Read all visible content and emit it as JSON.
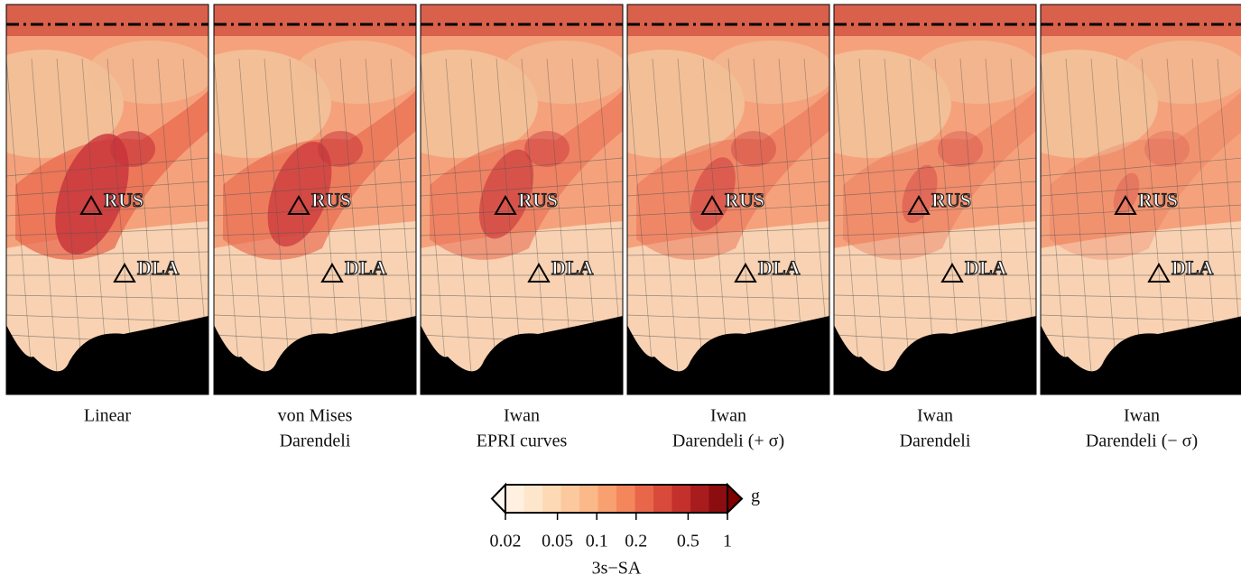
{
  "panels": [
    {
      "caption_lines": [
        "Linear"
      ]
    },
    {
      "caption_lines": [
        "von Mises",
        "Darendeli"
      ]
    },
    {
      "caption_lines": [
        "Iwan",
        "EPRI curves"
      ]
    },
    {
      "caption_lines": [
        "Iwan",
        "Darendeli (+ σ)"
      ]
    },
    {
      "caption_lines": [
        "Iwan",
        "Darendeli"
      ]
    },
    {
      "caption_lines": [
        "Iwan",
        "Darendeli (− σ)"
      ]
    }
  ],
  "stations": [
    "RUS",
    "DLA"
  ],
  "colorbar": {
    "label": "3s−SA",
    "unit": "g",
    "scale": "log",
    "lim": [
      0.02,
      1
    ],
    "ticks": [
      0.02,
      0.05,
      0.1,
      0.2,
      0.5,
      1
    ],
    "under_color": "#fff8f0",
    "over_color": "#7f0000",
    "colors": [
      "#fff0e0",
      "#fee6cc",
      "#fddab5",
      "#fcc99e",
      "#fbb888",
      "#f9a070",
      "#f4865c",
      "#e8674b",
      "#d84a3a",
      "#c4302c",
      "#a81c1e",
      "#8b0d10"
    ]
  }
}
